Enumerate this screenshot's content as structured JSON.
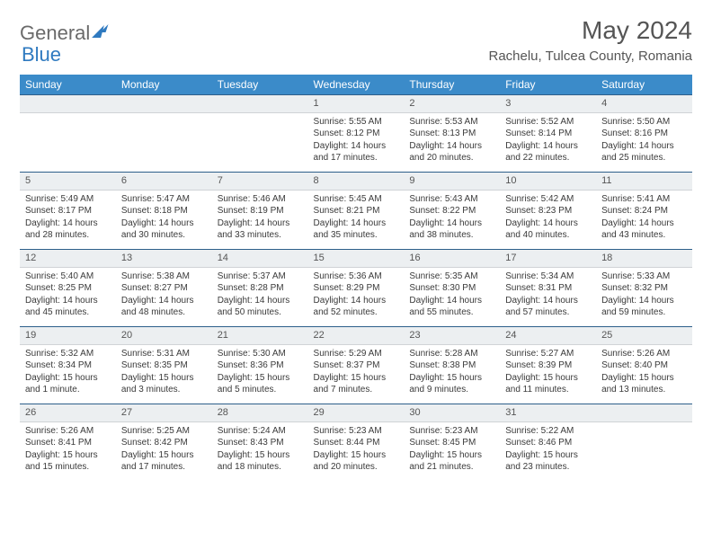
{
  "brand": {
    "part1": "General",
    "part2": "Blue"
  },
  "title": "May 2024",
  "location": "Rachelu, Tulcea County, Romania",
  "colors": {
    "header_bg": "#3b8bc9",
    "header_text": "#ffffff",
    "daybar_bg": "#eceff1",
    "daybar_border_top": "#2d5f8a",
    "text": "#3a3a3a",
    "title_text": "#555555",
    "background": "#ffffff"
  },
  "typography": {
    "title_fontsize": 28,
    "location_fontsize": 15,
    "header_fontsize": 12,
    "cell_fontsize": 10
  },
  "weekdays": [
    "Sunday",
    "Monday",
    "Tuesday",
    "Wednesday",
    "Thursday",
    "Friday",
    "Saturday"
  ],
  "weeks": [
    [
      {
        "n": "",
        "sr": "",
        "ss": "",
        "dl1": "",
        "dl2": ""
      },
      {
        "n": "",
        "sr": "",
        "ss": "",
        "dl1": "",
        "dl2": ""
      },
      {
        "n": "",
        "sr": "",
        "ss": "",
        "dl1": "",
        "dl2": ""
      },
      {
        "n": "1",
        "sr": "Sunrise: 5:55 AM",
        "ss": "Sunset: 8:12 PM",
        "dl1": "Daylight: 14 hours",
        "dl2": "and 17 minutes."
      },
      {
        "n": "2",
        "sr": "Sunrise: 5:53 AM",
        "ss": "Sunset: 8:13 PM",
        "dl1": "Daylight: 14 hours",
        "dl2": "and 20 minutes."
      },
      {
        "n": "3",
        "sr": "Sunrise: 5:52 AM",
        "ss": "Sunset: 8:14 PM",
        "dl1": "Daylight: 14 hours",
        "dl2": "and 22 minutes."
      },
      {
        "n": "4",
        "sr": "Sunrise: 5:50 AM",
        "ss": "Sunset: 8:16 PM",
        "dl1": "Daylight: 14 hours",
        "dl2": "and 25 minutes."
      }
    ],
    [
      {
        "n": "5",
        "sr": "Sunrise: 5:49 AM",
        "ss": "Sunset: 8:17 PM",
        "dl1": "Daylight: 14 hours",
        "dl2": "and 28 minutes."
      },
      {
        "n": "6",
        "sr": "Sunrise: 5:47 AM",
        "ss": "Sunset: 8:18 PM",
        "dl1": "Daylight: 14 hours",
        "dl2": "and 30 minutes."
      },
      {
        "n": "7",
        "sr": "Sunrise: 5:46 AM",
        "ss": "Sunset: 8:19 PM",
        "dl1": "Daylight: 14 hours",
        "dl2": "and 33 minutes."
      },
      {
        "n": "8",
        "sr": "Sunrise: 5:45 AM",
        "ss": "Sunset: 8:21 PM",
        "dl1": "Daylight: 14 hours",
        "dl2": "and 35 minutes."
      },
      {
        "n": "9",
        "sr": "Sunrise: 5:43 AM",
        "ss": "Sunset: 8:22 PM",
        "dl1": "Daylight: 14 hours",
        "dl2": "and 38 minutes."
      },
      {
        "n": "10",
        "sr": "Sunrise: 5:42 AM",
        "ss": "Sunset: 8:23 PM",
        "dl1": "Daylight: 14 hours",
        "dl2": "and 40 minutes."
      },
      {
        "n": "11",
        "sr": "Sunrise: 5:41 AM",
        "ss": "Sunset: 8:24 PM",
        "dl1": "Daylight: 14 hours",
        "dl2": "and 43 minutes."
      }
    ],
    [
      {
        "n": "12",
        "sr": "Sunrise: 5:40 AM",
        "ss": "Sunset: 8:25 PM",
        "dl1": "Daylight: 14 hours",
        "dl2": "and 45 minutes."
      },
      {
        "n": "13",
        "sr": "Sunrise: 5:38 AM",
        "ss": "Sunset: 8:27 PM",
        "dl1": "Daylight: 14 hours",
        "dl2": "and 48 minutes."
      },
      {
        "n": "14",
        "sr": "Sunrise: 5:37 AM",
        "ss": "Sunset: 8:28 PM",
        "dl1": "Daylight: 14 hours",
        "dl2": "and 50 minutes."
      },
      {
        "n": "15",
        "sr": "Sunrise: 5:36 AM",
        "ss": "Sunset: 8:29 PM",
        "dl1": "Daylight: 14 hours",
        "dl2": "and 52 minutes."
      },
      {
        "n": "16",
        "sr": "Sunrise: 5:35 AM",
        "ss": "Sunset: 8:30 PM",
        "dl1": "Daylight: 14 hours",
        "dl2": "and 55 minutes."
      },
      {
        "n": "17",
        "sr": "Sunrise: 5:34 AM",
        "ss": "Sunset: 8:31 PM",
        "dl1": "Daylight: 14 hours",
        "dl2": "and 57 minutes."
      },
      {
        "n": "18",
        "sr": "Sunrise: 5:33 AM",
        "ss": "Sunset: 8:32 PM",
        "dl1": "Daylight: 14 hours",
        "dl2": "and 59 minutes."
      }
    ],
    [
      {
        "n": "19",
        "sr": "Sunrise: 5:32 AM",
        "ss": "Sunset: 8:34 PM",
        "dl1": "Daylight: 15 hours",
        "dl2": "and 1 minute."
      },
      {
        "n": "20",
        "sr": "Sunrise: 5:31 AM",
        "ss": "Sunset: 8:35 PM",
        "dl1": "Daylight: 15 hours",
        "dl2": "and 3 minutes."
      },
      {
        "n": "21",
        "sr": "Sunrise: 5:30 AM",
        "ss": "Sunset: 8:36 PM",
        "dl1": "Daylight: 15 hours",
        "dl2": "and 5 minutes."
      },
      {
        "n": "22",
        "sr": "Sunrise: 5:29 AM",
        "ss": "Sunset: 8:37 PM",
        "dl1": "Daylight: 15 hours",
        "dl2": "and 7 minutes."
      },
      {
        "n": "23",
        "sr": "Sunrise: 5:28 AM",
        "ss": "Sunset: 8:38 PM",
        "dl1": "Daylight: 15 hours",
        "dl2": "and 9 minutes."
      },
      {
        "n": "24",
        "sr": "Sunrise: 5:27 AM",
        "ss": "Sunset: 8:39 PM",
        "dl1": "Daylight: 15 hours",
        "dl2": "and 11 minutes."
      },
      {
        "n": "25",
        "sr": "Sunrise: 5:26 AM",
        "ss": "Sunset: 8:40 PM",
        "dl1": "Daylight: 15 hours",
        "dl2": "and 13 minutes."
      }
    ],
    [
      {
        "n": "26",
        "sr": "Sunrise: 5:26 AM",
        "ss": "Sunset: 8:41 PM",
        "dl1": "Daylight: 15 hours",
        "dl2": "and 15 minutes."
      },
      {
        "n": "27",
        "sr": "Sunrise: 5:25 AM",
        "ss": "Sunset: 8:42 PM",
        "dl1": "Daylight: 15 hours",
        "dl2": "and 17 minutes."
      },
      {
        "n": "28",
        "sr": "Sunrise: 5:24 AM",
        "ss": "Sunset: 8:43 PM",
        "dl1": "Daylight: 15 hours",
        "dl2": "and 18 minutes."
      },
      {
        "n": "29",
        "sr": "Sunrise: 5:23 AM",
        "ss": "Sunset: 8:44 PM",
        "dl1": "Daylight: 15 hours",
        "dl2": "and 20 minutes."
      },
      {
        "n": "30",
        "sr": "Sunrise: 5:23 AM",
        "ss": "Sunset: 8:45 PM",
        "dl1": "Daylight: 15 hours",
        "dl2": "and 21 minutes."
      },
      {
        "n": "31",
        "sr": "Sunrise: 5:22 AM",
        "ss": "Sunset: 8:46 PM",
        "dl1": "Daylight: 15 hours",
        "dl2": "and 23 minutes."
      },
      {
        "n": "",
        "sr": "",
        "ss": "",
        "dl1": "",
        "dl2": ""
      }
    ]
  ]
}
